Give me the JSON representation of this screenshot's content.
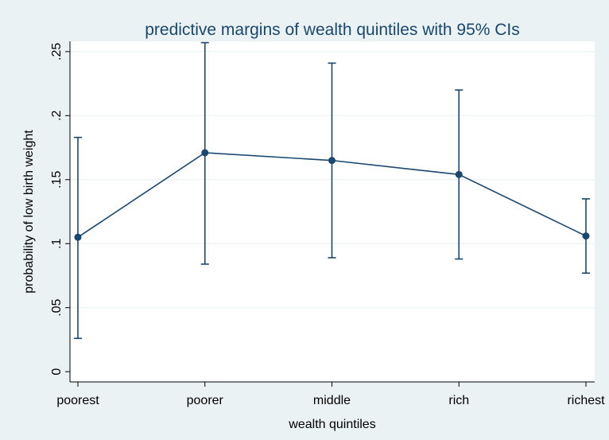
{
  "chart_data": {
    "type": "line",
    "title": "predictive margins of wealth quintiles with 95% CIs",
    "xlabel": "wealth quintiles",
    "ylabel": "probability of low birth weight",
    "categories": [
      "poorest",
      "poorer",
      "middle",
      "rich",
      "richest"
    ],
    "yticks": [
      0,
      0.05,
      0.1,
      0.15,
      0.2,
      0.25
    ],
    "ytick_labels": [
      "0",
      ".05",
      ".1",
      ".15",
      ".2",
      ".25"
    ],
    "ylim": [
      -0.008,
      0.258
    ],
    "grid": true,
    "series": [
      {
        "values": [
          0.105,
          0.171,
          0.165,
          0.154,
          0.106
        ],
        "ci_lower": [
          0.026,
          0.084,
          0.089,
          0.088,
          0.077
        ],
        "ci_upper": [
          0.183,
          0.257,
          0.241,
          0.22,
          0.135
        ]
      }
    ],
    "colors": {
      "background": "#eaf2f3",
      "plot_area": "#ffffff",
      "series": "#1a476f",
      "grid": "#eaf2f3",
      "title": "#1a476f"
    }
  }
}
